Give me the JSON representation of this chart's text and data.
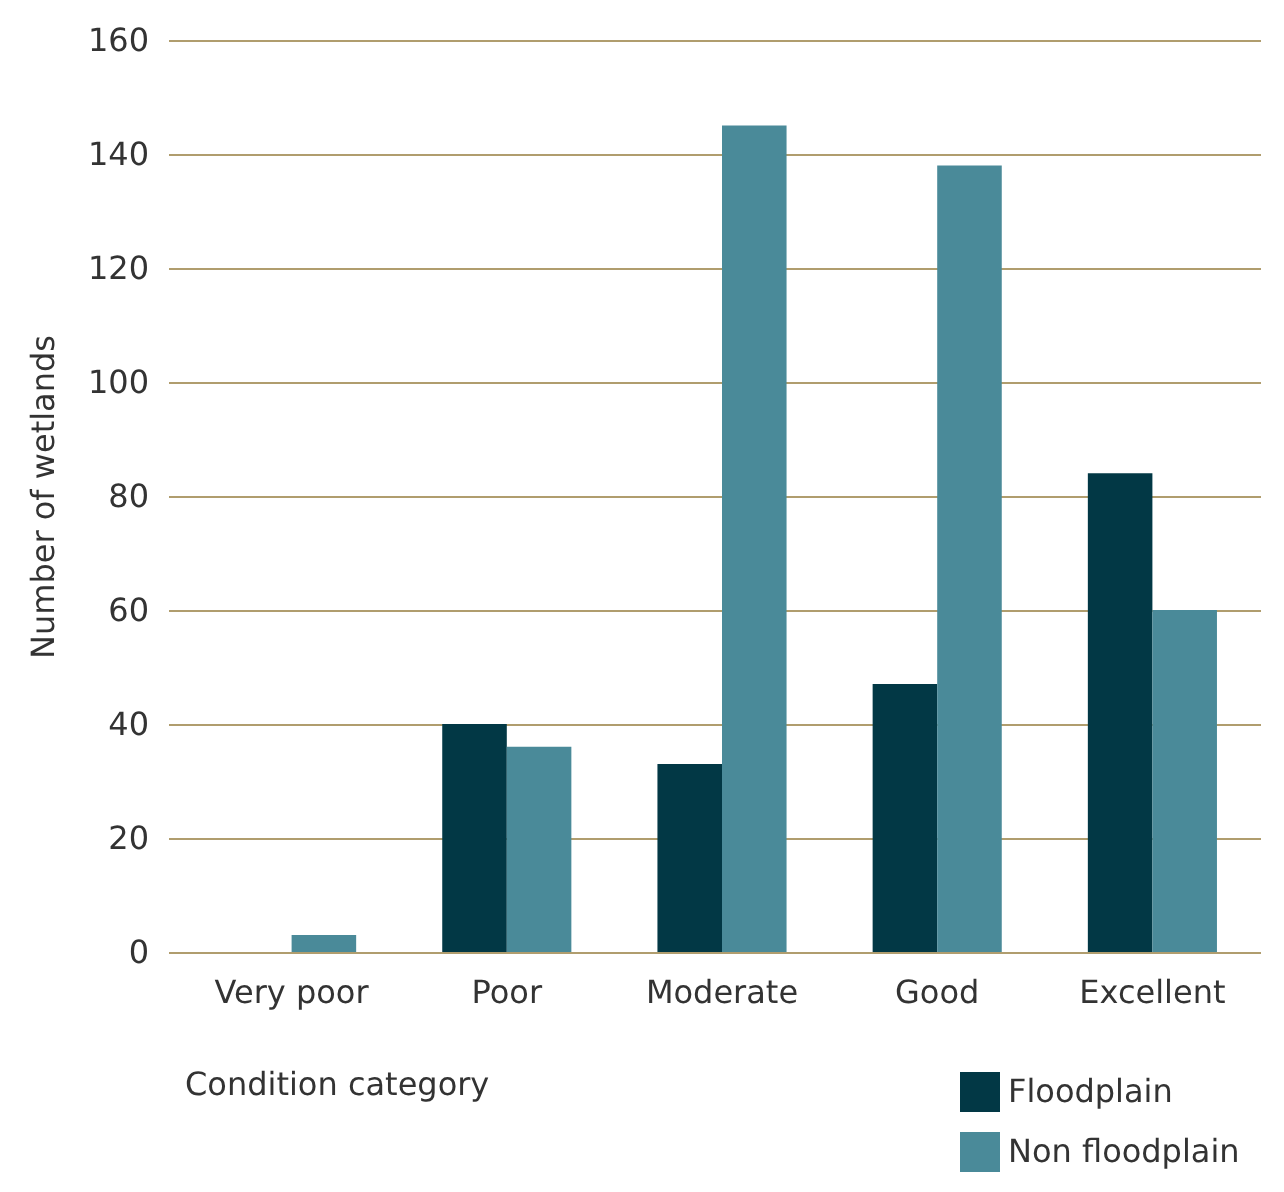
{
  "chart_data": {
    "type": "bar",
    "xlabel": "Condition category",
    "ylabel": "Number of wetlands",
    "categories": [
      "Very poor",
      "Poor",
      "Moderate",
      "Good",
      "Excellent"
    ],
    "series": [
      {
        "name": "Floodplain",
        "color": "#023845",
        "values": [
          0,
          40,
          33,
          47,
          84
        ]
      },
      {
        "name": "Non floodplain",
        "color": "#4a8a99",
        "values": [
          3,
          36,
          145,
          138,
          60
        ]
      }
    ],
    "ylim": [
      0,
      160
    ],
    "yticks": [
      0,
      20,
      40,
      60,
      80,
      100,
      120,
      140,
      160
    ],
    "grid": "y",
    "legend": "bottom right"
  }
}
